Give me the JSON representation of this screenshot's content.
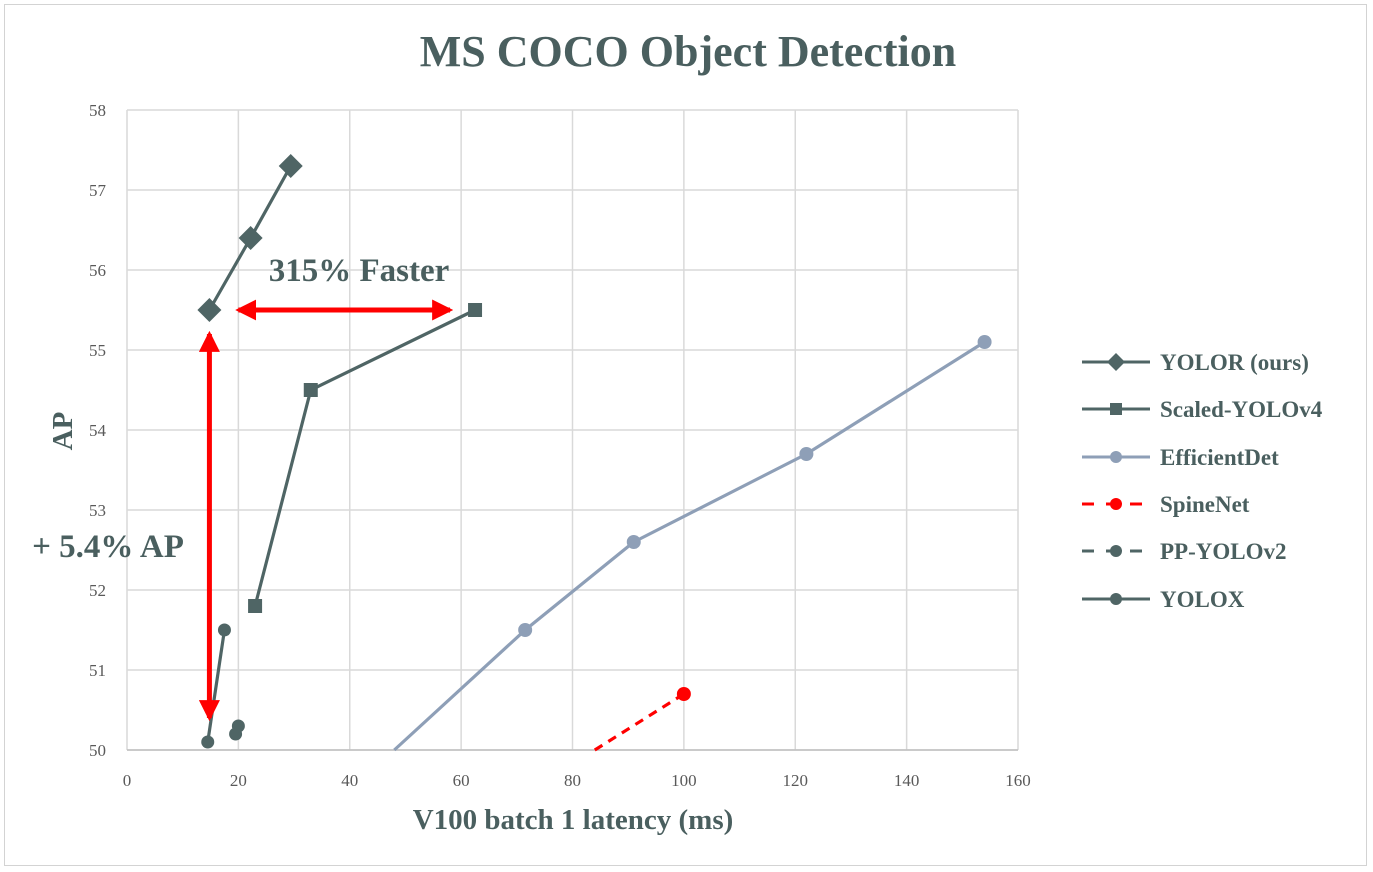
{
  "chart_data": {
    "type": "line",
    "title": "MS COCO Object Detection",
    "xlabel": "V100 batch 1 latency (ms)",
    "ylabel": "AP",
    "xlim": [
      0,
      160
    ],
    "ylim": [
      50,
      58
    ],
    "xticks": [
      0,
      20,
      40,
      60,
      80,
      100,
      120,
      140,
      160
    ],
    "yticks": [
      50,
      51,
      52,
      53,
      54,
      55,
      56,
      57,
      58
    ],
    "grid": true,
    "legend_position": "right",
    "series": [
      {
        "name": "YOLOR (ours)",
        "color": "#4f6565",
        "marker": "diamond",
        "line": "solid",
        "points": [
          [
            14.8,
            55.5
          ],
          [
            22.2,
            56.4
          ],
          [
            29.4,
            57.3
          ]
        ]
      },
      {
        "name": "Scaled-YOLOv4",
        "color": "#4f6565",
        "marker": "square",
        "line": "solid",
        "points": [
          [
            23.0,
            51.8
          ],
          [
            33.0,
            54.5
          ],
          [
            62.5,
            55.5
          ]
        ]
      },
      {
        "name": "EfficientDet",
        "color": "#8e9fb7",
        "marker": "circle",
        "line": "solid",
        "points": [
          [
            48.0,
            50.0
          ],
          [
            71.5,
            51.5
          ],
          [
            91.0,
            52.6
          ],
          [
            122.0,
            53.7
          ],
          [
            154.0,
            55.1
          ]
        ]
      },
      {
        "name": "SpineNet",
        "color": "#ff0000",
        "marker": "circle",
        "line": "dashed",
        "points": [
          [
            84.0,
            50.0
          ],
          [
            100.0,
            50.7
          ]
        ]
      },
      {
        "name": "PP-YOLOv2",
        "color": "#4f6565",
        "marker": "circle",
        "line": "dashed",
        "points": [
          [
            19.5,
            50.2
          ],
          [
            20.0,
            50.3
          ]
        ]
      },
      {
        "name": "YOLOX",
        "color": "#4f6565",
        "marker": "circle",
        "line": "solid",
        "points": [
          [
            14.5,
            50.1
          ],
          [
            17.5,
            51.5
          ]
        ]
      }
    ],
    "annotations": [
      {
        "text": "315% Faster",
        "arrow": "horizontal",
        "color": "#ff0000",
        "from": [
          20.0,
          55.5
        ],
        "to": [
          58.0,
          55.5
        ]
      },
      {
        "text": "+ 5.4% AP",
        "arrow": "vertical",
        "color": "#ff0000",
        "from": [
          14.8,
          50.4
        ],
        "to": [
          14.8,
          55.2
        ]
      }
    ]
  }
}
